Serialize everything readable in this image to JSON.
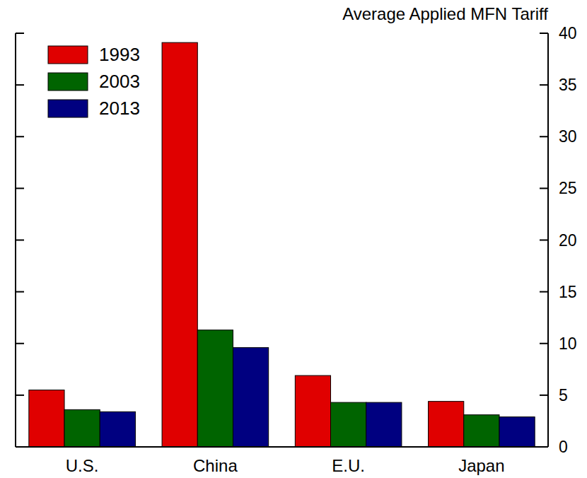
{
  "chart_data": {
    "type": "bar",
    "title": "Average Applied MFN Tariff",
    "categories": [
      "U.S.",
      "China",
      "E.U.",
      "Japan"
    ],
    "series": [
      {
        "name": "1993",
        "color": "#e00000",
        "values": [
          5.5,
          39.1,
          6.9,
          4.4
        ]
      },
      {
        "name": "2003",
        "color": "#006400",
        "values": [
          3.6,
          11.3,
          4.3,
          3.1
        ]
      },
      {
        "name": "2013",
        "color": "#000080",
        "values": [
          3.4,
          9.6,
          4.3,
          2.9
        ]
      }
    ],
    "ylim": [
      0,
      40
    ],
    "yticks": [
      0,
      5,
      10,
      15,
      20,
      25,
      30,
      35,
      40
    ],
    "grid": false,
    "legend": "top-left"
  }
}
